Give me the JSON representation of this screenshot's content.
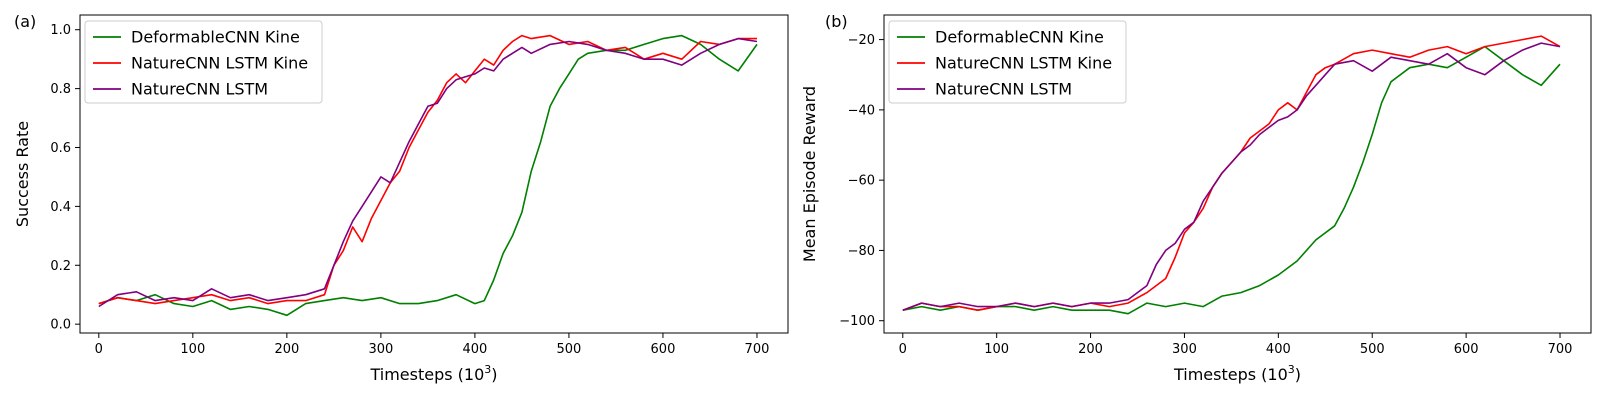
{
  "chart_data": [
    {
      "type": "line",
      "panel_label": "(a)",
      "xlabel": "Timesteps (10",
      "xlabel_sup": "3",
      "xlabel_close": ")",
      "ylabel": "Success Rate",
      "xlim": [
        -20,
        733
      ],
      "ylim": [
        -0.03,
        1.05
      ],
      "xticks": [
        0,
        100,
        200,
        300,
        400,
        500,
        600,
        700
      ],
      "xtick_labels": [
        "0",
        "100",
        "200",
        "300",
        "400",
        "500",
        "600",
        "700"
      ],
      "yticks": [
        0.0,
        0.2,
        0.4,
        0.6,
        0.8,
        1.0
      ],
      "ytick_labels": [
        "0.0",
        "0.2",
        "0.4",
        "0.6",
        "0.8",
        "1.0"
      ],
      "grid": false,
      "legend_position": "top-left",
      "series": [
        {
          "name": "DeformableCNN Kine",
          "color": "#008000",
          "x": [
            0,
            20,
            40,
            60,
            80,
            100,
            120,
            140,
            160,
            180,
            200,
            220,
            240,
            260,
            280,
            300,
            320,
            340,
            360,
            380,
            400,
            410,
            420,
            430,
            440,
            450,
            460,
            470,
            480,
            490,
            500,
            510,
            520,
            540,
            560,
            580,
            600,
            620,
            640,
            660,
            680,
            700
          ],
          "y": [
            0.07,
            0.09,
            0.08,
            0.1,
            0.07,
            0.06,
            0.08,
            0.05,
            0.06,
            0.05,
            0.03,
            0.07,
            0.08,
            0.09,
            0.08,
            0.09,
            0.07,
            0.07,
            0.08,
            0.1,
            0.07,
            0.08,
            0.15,
            0.24,
            0.3,
            0.38,
            0.52,
            0.62,
            0.74,
            0.8,
            0.85,
            0.9,
            0.92,
            0.93,
            0.93,
            0.95,
            0.97,
            0.98,
            0.95,
            0.9,
            0.86,
            0.95
          ]
        },
        {
          "name": "NatureCNN LSTM Kine",
          "color": "#ff0000",
          "x": [
            0,
            20,
            40,
            60,
            80,
            100,
            120,
            140,
            160,
            180,
            200,
            220,
            240,
            250,
            260,
            270,
            280,
            290,
            300,
            310,
            320,
            330,
            340,
            350,
            360,
            370,
            380,
            390,
            400,
            410,
            420,
            430,
            440,
            450,
            460,
            480,
            500,
            520,
            540,
            560,
            580,
            600,
            620,
            640,
            660,
            680,
            700
          ],
          "y": [
            0.07,
            0.09,
            0.08,
            0.07,
            0.08,
            0.09,
            0.1,
            0.08,
            0.09,
            0.07,
            0.08,
            0.08,
            0.1,
            0.2,
            0.25,
            0.33,
            0.28,
            0.36,
            0.42,
            0.48,
            0.52,
            0.6,
            0.66,
            0.72,
            0.76,
            0.82,
            0.85,
            0.82,
            0.86,
            0.9,
            0.88,
            0.93,
            0.96,
            0.98,
            0.97,
            0.98,
            0.95,
            0.96,
            0.93,
            0.94,
            0.9,
            0.92,
            0.9,
            0.96,
            0.95,
            0.97,
            0.97
          ]
        },
        {
          "name": "NatureCNN LSTM",
          "color": "#800080",
          "x": [
            0,
            20,
            40,
            60,
            80,
            100,
            120,
            140,
            160,
            180,
            200,
            220,
            240,
            250,
            260,
            270,
            280,
            290,
            300,
            310,
            320,
            330,
            340,
            350,
            360,
            370,
            380,
            390,
            400,
            410,
            420,
            430,
            440,
            450,
            460,
            480,
            500,
            520,
            540,
            560,
            580,
            600,
            620,
            640,
            660,
            680,
            700
          ],
          "y": [
            0.06,
            0.1,
            0.11,
            0.08,
            0.09,
            0.08,
            0.12,
            0.09,
            0.1,
            0.08,
            0.09,
            0.1,
            0.12,
            0.2,
            0.28,
            0.35,
            0.4,
            0.45,
            0.5,
            0.48,
            0.55,
            0.62,
            0.68,
            0.74,
            0.75,
            0.8,
            0.83,
            0.84,
            0.85,
            0.87,
            0.86,
            0.9,
            0.92,
            0.94,
            0.92,
            0.95,
            0.96,
            0.95,
            0.93,
            0.92,
            0.9,
            0.9,
            0.88,
            0.92,
            0.95,
            0.97,
            0.96
          ]
        }
      ]
    },
    {
      "type": "line",
      "panel_label": "(b)",
      "xlabel": "Timesteps (10",
      "xlabel_sup": "3",
      "xlabel_close": ")",
      "ylabel": "Mean Episode Reward",
      "xlim": [
        -20,
        733
      ],
      "ylim": [
        -103.5,
        -13
      ],
      "xticks": [
        0,
        100,
        200,
        300,
        400,
        500,
        600,
        700
      ],
      "xtick_labels": [
        "0",
        "100",
        "200",
        "300",
        "400",
        "500",
        "600",
        "700"
      ],
      "yticks": [
        -100,
        -80,
        -60,
        -40,
        -20
      ],
      "ytick_labels": [
        "−100",
        "−80",
        "−60",
        "−40",
        "−20"
      ],
      "grid": false,
      "legend_position": "top-left",
      "series": [
        {
          "name": "DeformableCNN Kine",
          "color": "#008000",
          "x": [
            0,
            20,
            40,
            60,
            80,
            100,
            120,
            140,
            160,
            180,
            200,
            220,
            240,
            260,
            280,
            300,
            320,
            340,
            360,
            380,
            400,
            420,
            440,
            460,
            470,
            480,
            490,
            500,
            510,
            520,
            540,
            560,
            580,
            600,
            620,
            640,
            660,
            680,
            700
          ],
          "y": [
            -97,
            -96,
            -97,
            -96,
            -97,
            -96,
            -96,
            -97,
            -96,
            -97,
            -97,
            -97,
            -98,
            -95,
            -96,
            -95,
            -96,
            -93,
            -92,
            -90,
            -87,
            -83,
            -77,
            -73,
            -68,
            -62,
            -55,
            -47,
            -38,
            -32,
            -28,
            -27,
            -28,
            -25,
            -22,
            -26,
            -30,
            -33,
            -27
          ]
        },
        {
          "name": "NatureCNN LSTM Kine",
          "color": "#ff0000",
          "x": [
            0,
            20,
            40,
            60,
            80,
            100,
            120,
            140,
            160,
            180,
            200,
            220,
            240,
            260,
            280,
            290,
            300,
            310,
            320,
            330,
            340,
            350,
            360,
            370,
            380,
            390,
            400,
            410,
            420,
            430,
            440,
            450,
            460,
            480,
            500,
            520,
            540,
            560,
            580,
            600,
            620,
            640,
            660,
            680,
            700
          ],
          "y": [
            -97,
            -95,
            -96,
            -96,
            -97,
            -96,
            -95,
            -96,
            -95,
            -96,
            -95,
            -96,
            -95,
            -92,
            -88,
            -82,
            -75,
            -72,
            -68,
            -62,
            -58,
            -55,
            -52,
            -48,
            -46,
            -44,
            -40,
            -38,
            -40,
            -35,
            -30,
            -28,
            -27,
            -24,
            -23,
            -24,
            -25,
            -23,
            -22,
            -24,
            -22,
            -21,
            -20,
            -19,
            -22
          ]
        },
        {
          "name": "NatureCNN LSTM",
          "color": "#800080",
          "x": [
            0,
            20,
            40,
            60,
            80,
            100,
            120,
            140,
            160,
            180,
            200,
            220,
            240,
            260,
            270,
            280,
            290,
            300,
            310,
            320,
            330,
            340,
            350,
            360,
            370,
            380,
            390,
            400,
            410,
            420,
            430,
            440,
            450,
            460,
            480,
            500,
            520,
            540,
            560,
            580,
            600,
            620,
            640,
            660,
            680,
            700
          ],
          "y": [
            -97,
            -95,
            -96,
            -95,
            -96,
            -96,
            -95,
            -96,
            -95,
            -96,
            -95,
            -95,
            -94,
            -90,
            -84,
            -80,
            -78,
            -74,
            -72,
            -66,
            -62,
            -58,
            -55,
            -52,
            -50,
            -47,
            -45,
            -43,
            -42,
            -40,
            -36,
            -33,
            -30,
            -27,
            -26,
            -29,
            -25,
            -26,
            -27,
            -24,
            -28,
            -30,
            -26,
            -23,
            -21,
            -22
          ]
        }
      ]
    }
  ]
}
